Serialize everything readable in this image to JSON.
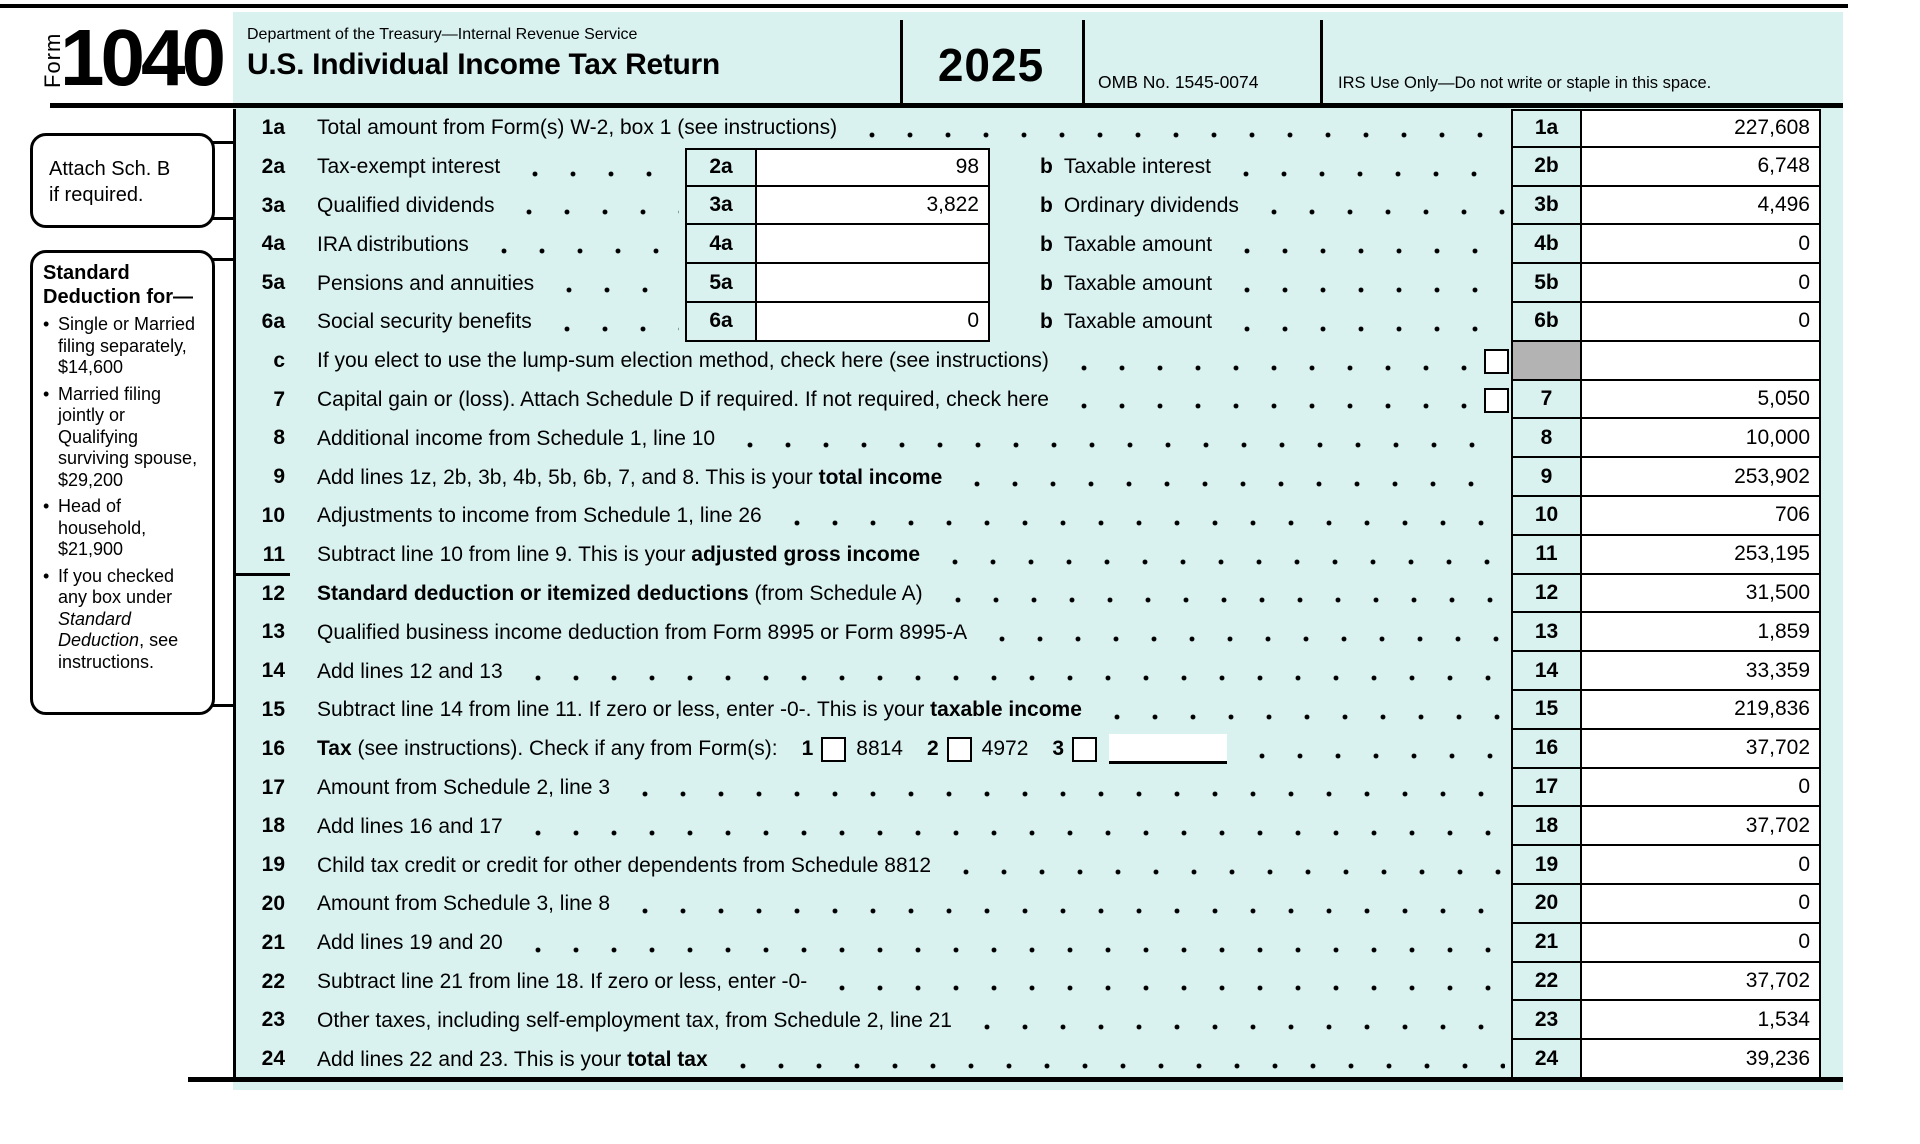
{
  "header": {
    "form_word": "Form",
    "form_number": "1040",
    "department": "Department of the Treasury—Internal Revenue Service",
    "title": "U.S. Individual Income Tax Return",
    "year": "2025",
    "omb": "OMB No. 1545-0074",
    "irs_use": "IRS Use Only—Do not write or staple in this space."
  },
  "colors": {
    "panel": "#d9f2f0",
    "gray_cell": "#b3b3b3"
  },
  "sidebar": {
    "attach_note": [
      "Attach Sch. B",
      "if required."
    ],
    "deduction_box": {
      "title": "Standard Deduction for—",
      "bullets": [
        [
          {
            "t": "Single or Married filing separately, $14,600"
          }
        ],
        [
          {
            "t": "Married filing jointly or Qualifying surviving spouse, $29,200"
          }
        ],
        [
          {
            "t": "Head of household, $21,900"
          }
        ],
        [
          {
            "t": "If you checked any box under "
          },
          {
            "t": "Standard Deduction",
            "i": true
          },
          {
            "t": ", see instructions."
          }
        ]
      ]
    }
  },
  "form_rows": [
    {
      "num": "1a",
      "label": [
        [
          "Total amount from Form(s) W-2, box 1 (see instructions)",
          ""
        ]
      ],
      "right_label": "1a",
      "right_value": "227,608"
    },
    {
      "num": "2a",
      "label": [
        [
          "Tax-exempt interest",
          ""
        ]
      ],
      "inner_label": "2a",
      "inner_value": "98",
      "b_prefix": "b",
      "b_label": "Taxable interest",
      "right_label": "2b",
      "right_value": "6,748"
    },
    {
      "num": "3a",
      "label": [
        [
          "Qualified dividends",
          ""
        ]
      ],
      "inner_label": "3a",
      "inner_value": "3,822",
      "b_prefix": "b",
      "b_label": "Ordinary dividends",
      "right_label": "3b",
      "right_value": "4,496"
    },
    {
      "num": "4a",
      "label": [
        [
          "IRA distributions",
          ""
        ]
      ],
      "inner_label": "4a",
      "inner_value": "",
      "b_prefix": "b",
      "b_label": "Taxable amount",
      "right_label": "4b",
      "right_value": "0"
    },
    {
      "num": "5a",
      "label": [
        [
          "Pensions and annuities",
          ""
        ]
      ],
      "inner_label": "5a",
      "inner_value": "",
      "b_prefix": "b",
      "b_label": "Taxable amount",
      "right_label": "5b",
      "right_value": "0"
    },
    {
      "num": "6a",
      "label": [
        [
          "Social security benefits",
          ""
        ]
      ],
      "inner_label": "6a",
      "inner_value": "0",
      "b_prefix": "b",
      "b_label": "Taxable amount",
      "right_label": "6b",
      "right_value": "0"
    },
    {
      "num": "c",
      "label": [
        [
          "If you elect to use the lump-sum election method, check here (see instructions)",
          ""
        ]
      ],
      "checkbox": true,
      "checkbox_name": "lump-sum-checkbox",
      "gray_label": true,
      "right_label": "",
      "right_value": ""
    },
    {
      "num": "7",
      "label": [
        [
          "Capital gain or (loss). Attach Schedule D if required. If not required, check here",
          ""
        ]
      ],
      "checkbox": true,
      "checkbox_name": "schedule-d-checkbox",
      "right_label": "7",
      "right_value": "5,050"
    },
    {
      "num": "8",
      "label": [
        [
          "Additional income from Schedule 1, line 10",
          ""
        ]
      ],
      "right_label": "8",
      "right_value": "10,000"
    },
    {
      "num": "9",
      "label": [
        [
          "Add lines 1z, 2b, 3b, 4b, 5b, 6b, 7, and 8. This is your ",
          ""
        ],
        [
          "total income",
          "b"
        ]
      ],
      "right_label": "9",
      "right_value": "253,902"
    },
    {
      "num": "10",
      "label": [
        [
          "Adjustments to income from Schedule 1, line 26",
          ""
        ]
      ],
      "right_label": "10",
      "right_value": "706"
    },
    {
      "num": "11",
      "label": [
        [
          "Subtract line 10 from line 9. This is your ",
          ""
        ],
        [
          "adjusted gross income",
          "b"
        ]
      ],
      "right_label": "11",
      "right_value": "253,195"
    },
    {
      "num": "12",
      "label": [
        [
          "Standard deduction or itemized deductions",
          "b"
        ],
        [
          " (from Schedule A)",
          ""
        ]
      ],
      "right_label": "12",
      "right_value": "31,500"
    },
    {
      "num": "13",
      "label": [
        [
          "Qualified business income deduction from Form 8995 or Form 8995-A",
          ""
        ]
      ],
      "right_label": "13",
      "right_value": "1,859"
    },
    {
      "num": "14",
      "label": [
        [
          "Add lines 12 and 13",
          ""
        ]
      ],
      "right_label": "14",
      "right_value": "33,359"
    },
    {
      "num": "15",
      "label": [
        [
          "Subtract line 14 from line 11. If zero or less, enter -0-. This is your ",
          ""
        ],
        [
          "taxable income",
          "b"
        ]
      ],
      "right_label": "15",
      "right_value": "219,836"
    },
    {
      "num": "16",
      "label": [
        [
          "Tax",
          "b"
        ],
        [
          " (see instructions). Check if any from Form(s):",
          ""
        ]
      ],
      "tax_checks": [
        {
          "n": "1",
          "form": "8814",
          "name": "form-8814-checkbox"
        },
        {
          "n": "2",
          "form": "4972",
          "name": "form-4972-checkbox"
        },
        {
          "n": "3",
          "form": "",
          "name": "tax-form3-checkbox",
          "input": true
        }
      ],
      "right_label": "16",
      "right_value": "37,702"
    },
    {
      "num": "17",
      "label": [
        [
          "Amount from Schedule 2, line 3",
          ""
        ]
      ],
      "right_label": "17",
      "right_value": "0"
    },
    {
      "num": "18",
      "label": [
        [
          "Add lines 16 and 17",
          ""
        ]
      ],
      "right_label": "18",
      "right_value": "37,702"
    },
    {
      "num": "19",
      "label": [
        [
          "Child tax credit or credit for other dependents from Schedule 8812",
          ""
        ]
      ],
      "right_label": "19",
      "right_value": "0"
    },
    {
      "num": "20",
      "label": [
        [
          "Amount from Schedule 3, line 8",
          ""
        ]
      ],
      "right_label": "20",
      "right_value": "0"
    },
    {
      "num": "21",
      "label": [
        [
          "Add lines 19 and 20",
          ""
        ]
      ],
      "right_label": "21",
      "right_value": "0"
    },
    {
      "num": "22",
      "label": [
        [
          "Subtract line 21 from line 18. If zero or less, enter -0-",
          ""
        ]
      ],
      "right_label": "22",
      "right_value": "37,702"
    },
    {
      "num": "23",
      "label": [
        [
          "Other taxes, including self-employment tax, from Schedule 2, line 21",
          ""
        ]
      ],
      "right_label": "23",
      "right_value": "1,534"
    },
    {
      "num": "24",
      "label": [
        [
          "Add lines 22 and 23. This is your ",
          ""
        ],
        [
          "total tax",
          "b"
        ]
      ],
      "right_label": "24",
      "right_value": "39,236"
    }
  ]
}
